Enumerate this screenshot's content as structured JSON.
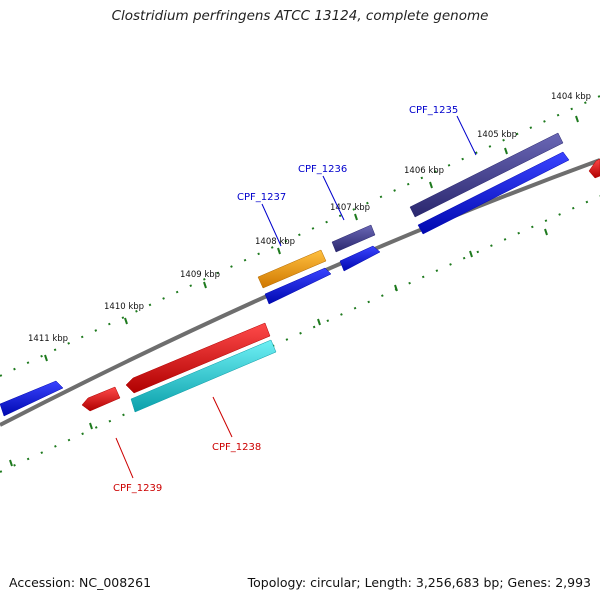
{
  "title": "Clostridium perfringens ATCC 13124, complete genome",
  "footer": {
    "accession": "Accession: NC_008261",
    "summary": "Topology: circular; Length: 3,256,683 bp; Genes: 2,993"
  },
  "colors": {
    "backbone": "#808080",
    "tick": "#1e7a1e",
    "label_plus": "#0000cc",
    "label_minus": "#cc0000",
    "navy": "#3d3a8c",
    "blue": "#0a14e6",
    "orange": "#f5a00a",
    "red": "#e60a0a",
    "cyan": "#14c8d2"
  },
  "kbp_labels": [
    "1404 kbp",
    "1405 kbp",
    "1406 kbp",
    "1407 kbp",
    "1408 kbp",
    "1409 kbp",
    "1410 kbp",
    "1411 kbp"
  ],
  "gene_labels": [
    "CPF_1235",
    "CPF_1236",
    "CPF_1237",
    "CPF_1238",
    "CPF_1239"
  ]
}
